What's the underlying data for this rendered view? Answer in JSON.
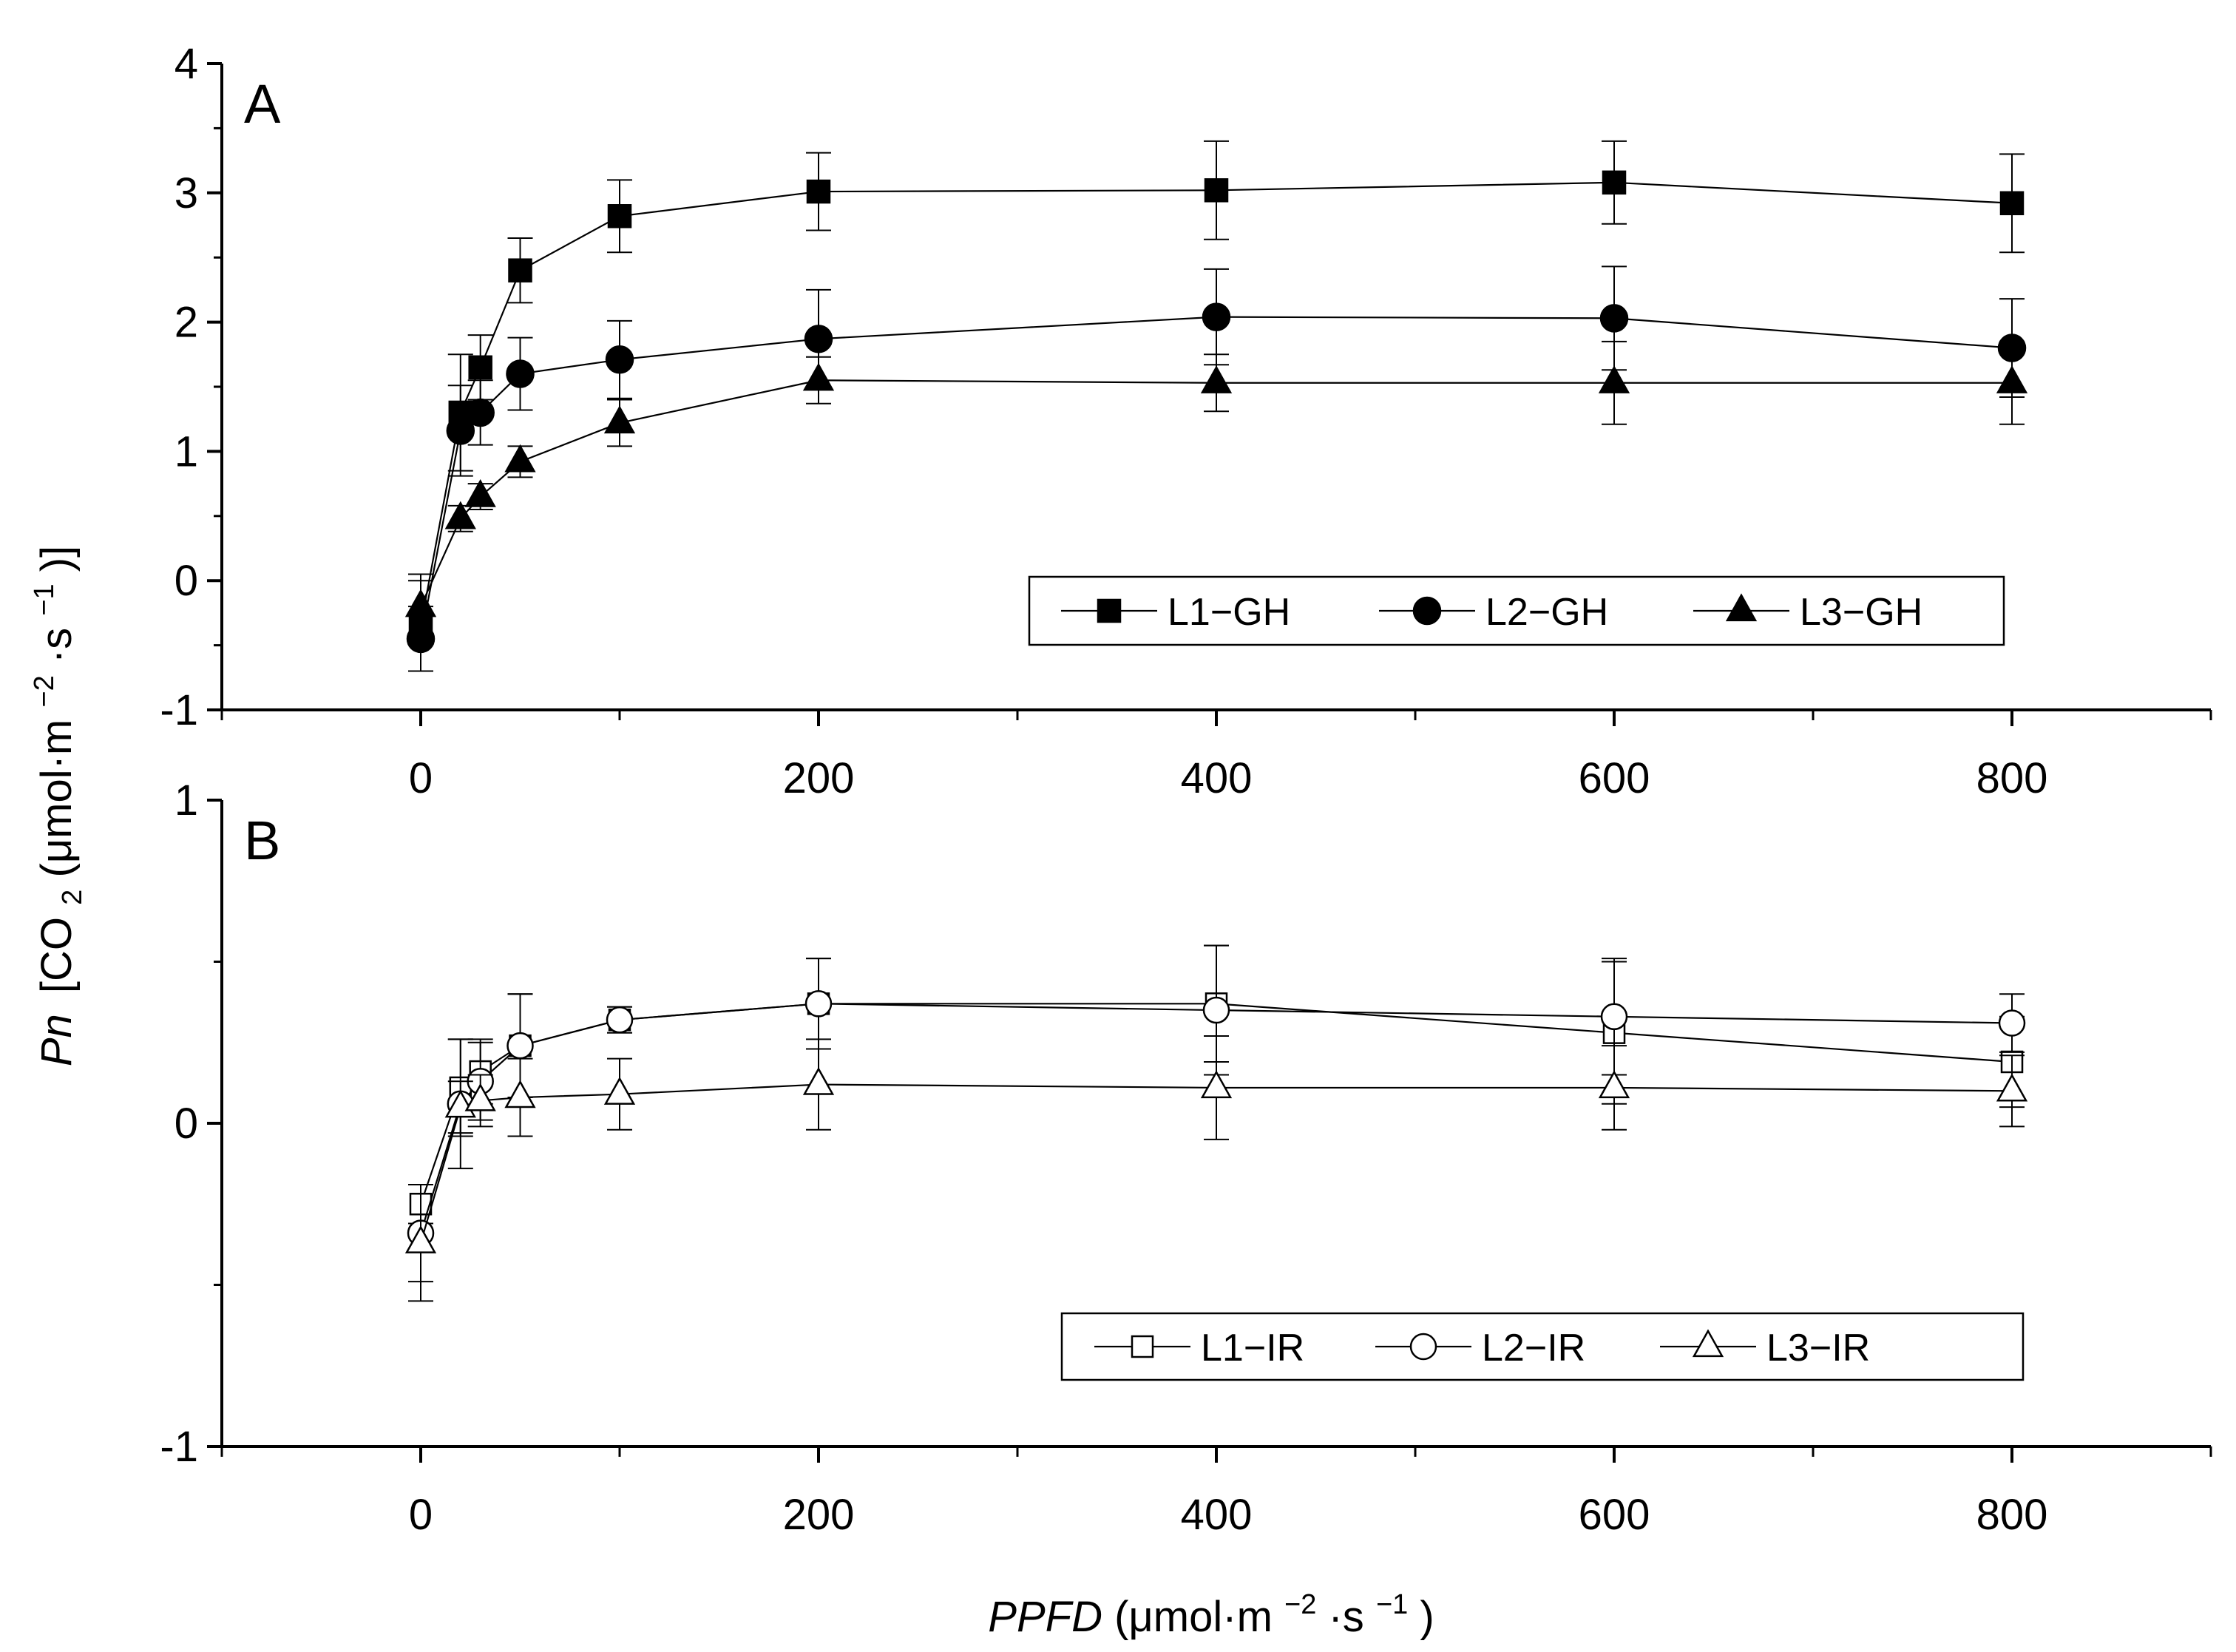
{
  "figure": {
    "ylabel_main": "Pn",
    "ylabel_rest": "[CO",
    "ylabel_sub": "2",
    "ylabel_mid": "(μmol·m",
    "ylabel_sup1": "−2",
    "ylabel_mid2": "·s",
    "ylabel_sup2": "−1",
    "ylabel_end": ")]",
    "xlabel_main": "PPFD",
    "xlabel_rest": " (μmol·m",
    "xlabel_sup1": "−2",
    "xlabel_mid": "·s",
    "xlabel_sup2": "−1",
    "xlabel_end": ")"
  },
  "chart_data": [
    {
      "type": "line",
      "panel_label": "A",
      "x": [
        0,
        20,
        30,
        50,
        100,
        200,
        400,
        600,
        800
      ],
      "xlim": [
        -100,
        900
      ],
      "ylim": [
        -1,
        4
      ],
      "yticks": [
        -1,
        0,
        1,
        2,
        3,
        4
      ],
      "xticks": [
        0,
        200,
        400,
        600,
        800
      ],
      "legend_position": "bottom-right",
      "grid": false,
      "series": [
        {
          "name": "L1−GH",
          "marker": "square-filled",
          "values": [
            -0.35,
            1.3,
            1.65,
            2.4,
            2.82,
            3.01,
            3.02,
            3.08,
            2.92
          ],
          "errors": [
            0.35,
            0.45,
            0.25,
            0.25,
            0.28,
            0.3,
            0.38,
            0.32,
            0.38
          ]
        },
        {
          "name": "L2−GH",
          "marker": "circle-filled",
          "values": [
            -0.45,
            1.16,
            1.3,
            1.6,
            1.71,
            1.87,
            2.04,
            2.03,
            1.8
          ],
          "errors": [
            0.25,
            0.35,
            0.25,
            0.28,
            0.3,
            0.38,
            0.37,
            0.4,
            0.38
          ]
        },
        {
          "name": "L3−GH",
          "marker": "triangle-filled",
          "values": [
            -0.2,
            0.48,
            0.65,
            0.92,
            1.22,
            1.55,
            1.53,
            1.53,
            1.53
          ],
          "errors": [
            0.25,
            0.1,
            0.1,
            0.12,
            0.18,
            0.18,
            0.22,
            0.32,
            0.32
          ]
        }
      ]
    },
    {
      "type": "line",
      "panel_label": "B",
      "x": [
        0,
        20,
        30,
        50,
        100,
        200,
        400,
        600,
        800
      ],
      "xlim": [
        -100,
        900
      ],
      "ylim": [
        -1,
        1
      ],
      "yticks": [
        -1,
        0,
        1
      ],
      "xticks": [
        0,
        200,
        400,
        600,
        800
      ],
      "legend_position": "bottom-right",
      "grid": false,
      "series": [
        {
          "name": "L1−IR",
          "marker": "square-open",
          "values": [
            -0.25,
            0.11,
            0.16,
            0.24,
            0.32,
            0.37,
            0.37,
            0.28,
            0.19
          ],
          "errors": [
            0.06,
            0.15,
            0.1,
            0.16,
            0.04,
            0.14,
            0.18,
            0.22,
            0.14
          ]
        },
        {
          "name": "L2−IR",
          "marker": "circle-open",
          "values": [
            -0.34,
            0.06,
            0.13,
            0.24,
            0.32,
            0.37,
            0.35,
            0.33,
            0.31
          ],
          "errors": [
            0.15,
            0.2,
            0.12,
            0.16,
            0.04,
            0.14,
            0.2,
            0.18,
            0.09
          ]
        },
        {
          "name": "L3−IR",
          "marker": "triangle-open",
          "values": [
            -0.37,
            0.05,
            0.07,
            0.08,
            0.09,
            0.12,
            0.11,
            0.11,
            0.1
          ],
          "errors": [
            0.18,
            0.08,
            0.08,
            0.12,
            0.11,
            0.14,
            0.16,
            0.13,
            0.11
          ]
        }
      ]
    }
  ]
}
